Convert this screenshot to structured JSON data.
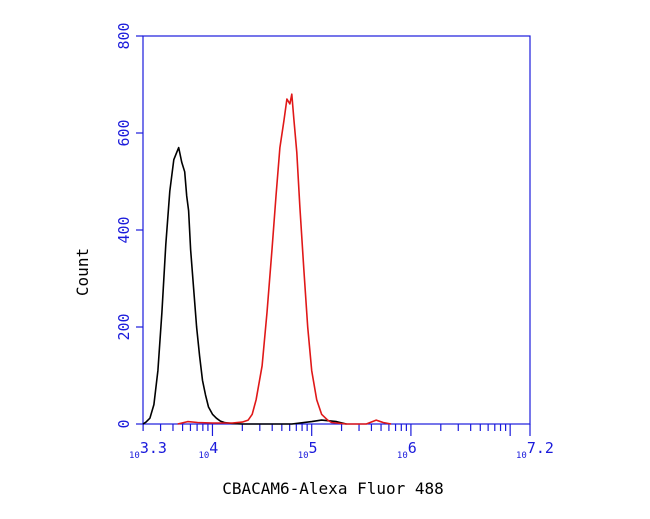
{
  "chart_data": {
    "type": "line",
    "xlabel": "CBACAM6-Alexa Fluor 488",
    "ylabel": "Count",
    "x_scale": "log",
    "xlim": [
      3.3,
      7.2
    ],
    "ylim": [
      0,
      800
    ],
    "y_ticks": [
      "0",
      "200",
      "400",
      "600",
      "800"
    ],
    "x_ticks": [
      {
        "base": "10",
        "exp": "3.3",
        "value": 3.3
      },
      {
        "base": "10",
        "exp": "4",
        "value": 4
      },
      {
        "base": "10",
        "exp": "5",
        "value": 5
      },
      {
        "base": "10",
        "exp": "6",
        "value": 6
      },
      {
        "base": "10",
        "exp": "7.2",
        "value": 7.2
      }
    ],
    "grid": false,
    "axis_color": "#1a1adb",
    "series": [
      {
        "color": "#000000",
        "x": [
          3.3,
          3.33,
          3.37,
          3.41,
          3.45,
          3.49,
          3.53,
          3.57,
          3.61,
          3.64,
          3.66,
          3.69,
          3.72,
          3.74,
          3.76,
          3.78,
          3.81,
          3.84,
          3.87,
          3.9,
          3.93,
          3.96,
          4.0,
          4.04,
          4.08,
          4.12,
          4.16,
          4.2,
          4.3,
          4.5,
          4.8,
          5.0,
          5.1,
          5.25,
          5.35
        ],
        "y": [
          0,
          4,
          12,
          40,
          110,
          230,
          370,
          480,
          545,
          560,
          570,
          540,
          520,
          470,
          440,
          360,
          280,
          200,
          140,
          90,
          60,
          35,
          20,
          12,
          6,
          3,
          2,
          1,
          0,
          0,
          0,
          5,
          8,
          5,
          0
        ]
      },
      {
        "color": "#e01818",
        "x": [
          3.65,
          3.75,
          3.85,
          4.0,
          4.2,
          4.3,
          4.36,
          4.4,
          4.44,
          4.5,
          4.55,
          4.6,
          4.64,
          4.68,
          4.72,
          4.75,
          4.78,
          4.8,
          4.82,
          4.85,
          4.88,
          4.92,
          4.96,
          5.0,
          5.05,
          5.1,
          5.16,
          5.2,
          5.25,
          5.35,
          5.55,
          5.65,
          5.72,
          5.8
        ],
        "y": [
          0,
          5,
          3,
          2,
          2,
          4,
          8,
          20,
          50,
          120,
          230,
          360,
          470,
          570,
          625,
          670,
          660,
          680,
          630,
          560,
          450,
          320,
          200,
          110,
          50,
          20,
          8,
          3,
          2,
          0,
          0,
          8,
          3,
          0
        ]
      }
    ]
  }
}
